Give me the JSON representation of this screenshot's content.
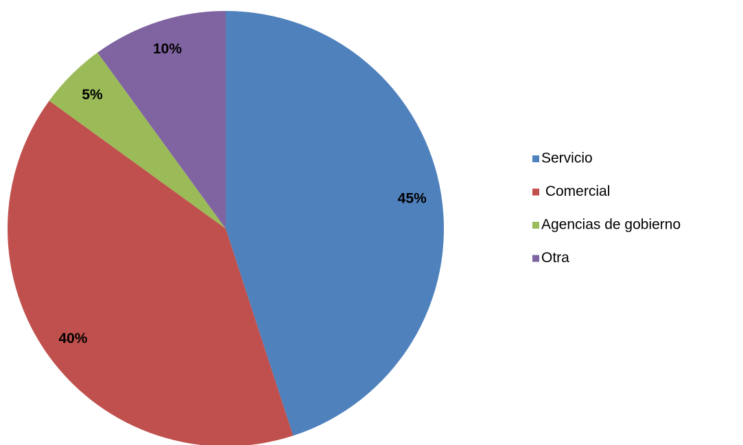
{
  "chart_data": {
    "type": "pie",
    "categories": [
      "Servicio",
      " Comercial",
      "Agencias de gobierno",
      "Otra"
    ],
    "values": [
      45,
      40,
      5,
      10
    ],
    "value_labels": [
      "45%",
      "40%",
      "5%",
      "10%"
    ],
    "colors": [
      "#4f81bd",
      "#c0504d",
      "#9bbb59",
      "#8064a2"
    ],
    "legend": "right"
  }
}
